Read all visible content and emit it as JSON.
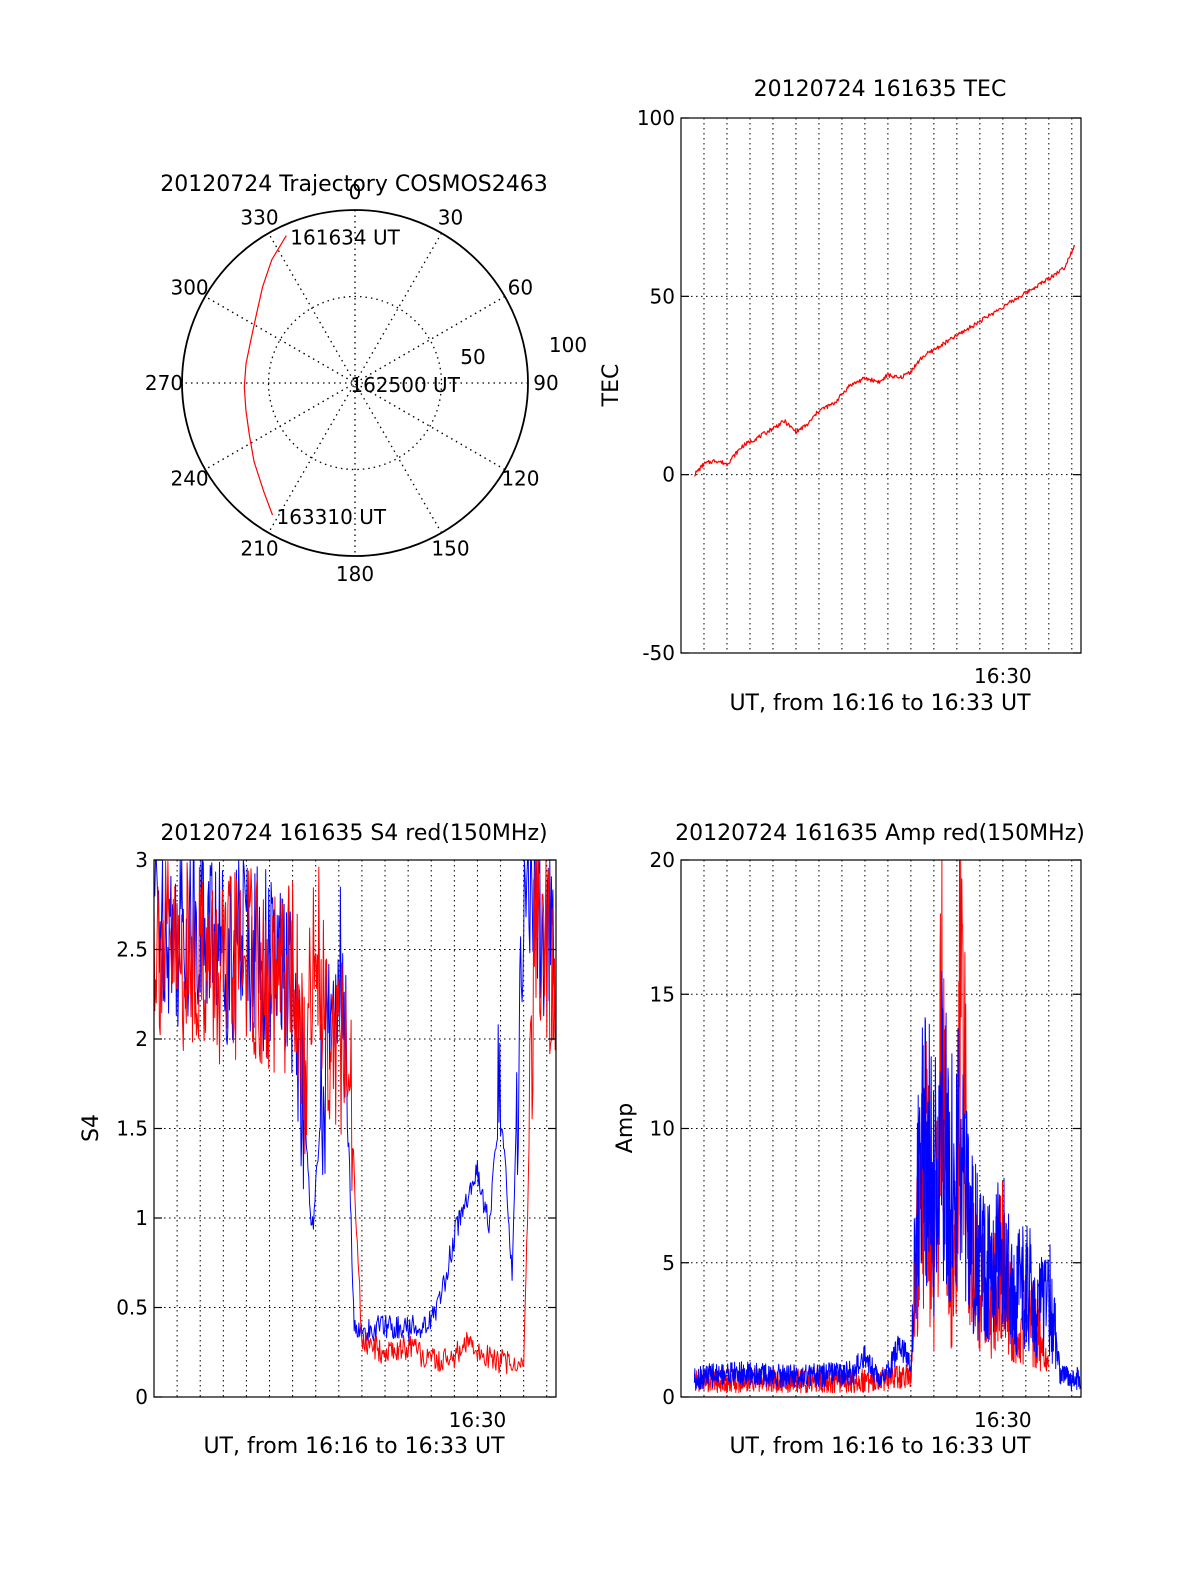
{
  "chart_data": [
    {
      "type": "polar",
      "title": "20120724 Trajectory COSMOS2463",
      "azimuth_ticks": [
        "0",
        "30",
        "60",
        "90",
        "120",
        "150",
        "180",
        "210",
        "240",
        "270",
        "300",
        "330"
      ],
      "radial_ticks": [
        "50",
        "100"
      ],
      "rlim": [
        0,
        100
      ],
      "grid": true,
      "series": [
        {
          "color": "#ff0000",
          "points": [
            [
              335,
              94
            ],
            [
              326,
              86
            ],
            [
              316,
              77
            ],
            [
              304,
              69
            ],
            [
              292,
              65
            ],
            [
              280,
              64
            ],
            [
              268,
              64
            ],
            [
              256,
              65
            ],
            [
              244,
              68
            ],
            [
              232,
              74
            ],
            [
              220,
              82
            ],
            [
              212,
              90
            ]
          ]
        }
      ],
      "annotations": [
        {
          "text": "161634 UT",
          "az": 335,
          "r": 94
        },
        {
          "text": "162500 UT",
          "az": 270,
          "r": 5
        },
        {
          "text": "163310 UT",
          "az": 212,
          "r": 90
        }
      ]
    },
    {
      "type": "line",
      "title": "20120724 161635 TEC",
      "xlabel": "UT, from 16:16 to 16:33 UT",
      "ylabel": "TEC",
      "xlim": [
        "16:16:00",
        "16:33:24"
      ],
      "ylim": [
        -50,
        100
      ],
      "yticks": [
        "-50",
        "0",
        "50",
        "100"
      ],
      "xtick_label": "16:30",
      "grid": true,
      "series": [
        {
          "color": "#ff0000",
          "x": [
            "16:16:35",
            "16:17:00",
            "16:17:30",
            "16:18:00",
            "16:18:40",
            "16:19:30",
            "16:20:00",
            "16:20:30",
            "16:21:00",
            "16:21:30",
            "16:22:00",
            "16:22:40",
            "16:23:20",
            "16:24:00",
            "16:24:40",
            "16:25:00",
            "16:25:30",
            "16:26:00",
            "16:26:30",
            "16:27:00",
            "16:28:00",
            "16:29:00",
            "16:30:00",
            "16:31:00",
            "16:32:00",
            "16:32:40",
            "16:33:10"
          ],
          "y": [
            0,
            3,
            4,
            3,
            8,
            11,
            13,
            15,
            12,
            14,
            18,
            20,
            25,
            27,
            26,
            28,
            27,
            29,
            33,
            35,
            39,
            43,
            47,
            51,
            55,
            58,
            65
          ]
        }
      ]
    },
    {
      "type": "line",
      "title": "20120724 161635 S4 red(150MHz)",
      "xlabel": "UT, from 16:16 to 16:33 UT",
      "ylabel": "S4",
      "xlim": [
        "16:16:00",
        "16:33:24"
      ],
      "ylim": [
        0,
        3
      ],
      "yticks": [
        "0",
        "0.5",
        "1",
        "1.5",
        "2",
        "2.5",
        "3"
      ],
      "xtick_label": "16:30",
      "grid": true,
      "series": [
        {
          "color": "#0000ff",
          "x": [
            "16:16:00",
            "16:17:00",
            "16:18:00",
            "16:19:00",
            "16:20:00",
            "16:21:00",
            "16:22:00",
            "16:22:30",
            "16:22:50",
            "16:23:20",
            "16:24:00",
            "16:24:20",
            "16:24:40",
            "16:25:00",
            "16:26:00",
            "16:27:00",
            "16:28:00",
            "16:28:30",
            "16:29:00",
            "16:29:30",
            "16:30:00",
            "16:30:30",
            "16:31:00",
            "16:31:30",
            "16:32:00",
            "16:32:30",
            "16:33:00",
            "16:33:24"
          ],
          "y": [
            2.8,
            2.6,
            2.7,
            2.5,
            2.6,
            2.4,
            2.3,
            1.6,
            0.9,
            1.7,
            2.5,
            1.8,
            0.4,
            0.35,
            0.4,
            0.38,
            0.42,
            0.6,
            0.9,
            1.1,
            1.25,
            0.95,
            1.7,
            0.7,
            2.9,
            2.8,
            2.6,
            2.5
          ]
        },
        {
          "color": "#ff0000",
          "x": [
            "16:16:00",
            "16:17:00",
            "16:18:00",
            "16:19:00",
            "16:20:00",
            "16:21:00",
            "16:22:00",
            "16:22:30",
            "16:23:00",
            "16:23:30",
            "16:24:00",
            "16:24:30",
            "16:25:00",
            "16:26:00",
            "16:27:00",
            "16:28:00",
            "16:29:00",
            "16:29:30",
            "16:30:00",
            "16:31:00",
            "16:32:00",
            "16:32:30",
            "16:33:00",
            "16:33:24"
          ],
          "y": [
            2.6,
            2.4,
            2.5,
            2.3,
            2.5,
            2.2,
            2.4,
            1.8,
            2.6,
            2.1,
            2.0,
            1.7,
            0.3,
            0.25,
            0.28,
            0.2,
            0.22,
            0.3,
            0.25,
            0.2,
            0.18,
            2.7,
            2.5,
            2.4
          ]
        }
      ]
    },
    {
      "type": "line",
      "title": "20120724 161635 Amp red(150MHz)",
      "xlabel": "UT, from 16:16 to 16:33 UT",
      "ylabel": "Amp",
      "xlim": [
        "16:16:00",
        "16:33:24"
      ],
      "ylim": [
        0,
        20
      ],
      "yticks": [
        "0",
        "5",
        "10",
        "15",
        "20"
      ],
      "xtick_label": "16:30",
      "grid": true,
      "series": [
        {
          "color": "#ff0000",
          "x": [
            "16:16:35",
            "16:24:00",
            "16:26:00",
            "16:26:20",
            "16:26:40",
            "16:27:00",
            "16:27:20",
            "16:27:40",
            "16:28:00",
            "16:28:10",
            "16:28:30",
            "16:29:00",
            "16:29:30",
            "16:30:00",
            "16:30:30",
            "16:31:00",
            "16:31:30",
            "16:32:00"
          ],
          "y": [
            0.6,
            0.6,
            0.8,
            6.5,
            9.0,
            3.5,
            13.8,
            4.0,
            5.5,
            17.6,
            5.2,
            4.0,
            3.5,
            5.5,
            2.0,
            3.0,
            2.5,
            1.0
          ]
        },
        {
          "color": "#0000ff",
          "x": [
            "16:16:35",
            "16:18:00",
            "16:20:00",
            "16:22:00",
            "16:23:30",
            "16:24:00",
            "16:24:30",
            "16:25:00",
            "16:25:30",
            "16:26:00",
            "16:26:20",
            "16:26:40",
            "16:27:00",
            "16:27:20",
            "16:27:40",
            "16:28:00",
            "16:28:30",
            "16:29:00",
            "16:29:30",
            "16:30:00",
            "16:30:30",
            "16:31:00",
            "16:31:30",
            "16:32:00",
            "16:32:30",
            "16:33:00",
            "16:33:24"
          ],
          "y": [
            0.7,
            0.9,
            0.8,
            0.8,
            0.9,
            1.6,
            0.8,
            0.9,
            2.0,
            1.2,
            8.0,
            9.5,
            7.5,
            10.0,
            8.5,
            9.0,
            6.5,
            5.0,
            4.5,
            5.5,
            3.5,
            4.5,
            3.0,
            4.0,
            0.8,
            0.6,
            0.7
          ]
        }
      ]
    }
  ]
}
